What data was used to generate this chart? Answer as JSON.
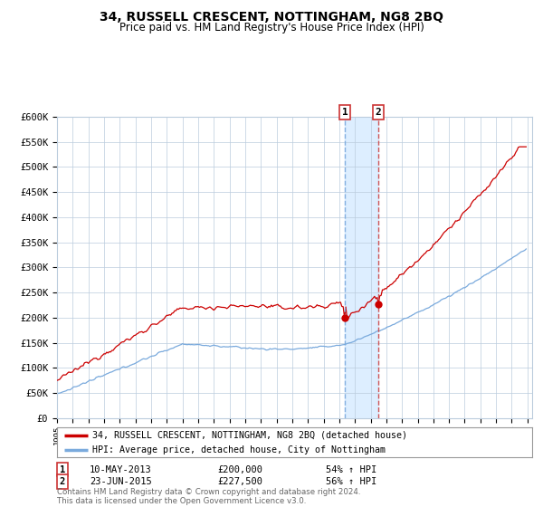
{
  "title": "34, RUSSELL CRESCENT, NOTTINGHAM, NG8 2BQ",
  "subtitle": "Price paid vs. HM Land Registry's House Price Index (HPI)",
  "ylim": [
    0,
    600000
  ],
  "yticks": [
    0,
    50000,
    100000,
    150000,
    200000,
    250000,
    300000,
    350000,
    400000,
    450000,
    500000,
    550000,
    600000
  ],
  "ytick_labels": [
    "£0",
    "£50K",
    "£100K",
    "£150K",
    "£200K",
    "£250K",
    "£300K",
    "£350K",
    "£400K",
    "£450K",
    "£500K",
    "£550K",
    "£600K"
  ],
  "sale1_date_num": 2013.36,
  "sale1_price": 200000,
  "sale2_date_num": 2015.48,
  "sale2_price": 227500,
  "legend_line1": "34, RUSSELL CRESCENT, NOTTINGHAM, NG8 2BQ (detached house)",
  "legend_line2": "HPI: Average price, detached house, City of Nottingham",
  "ann1_label": "1",
  "ann2_label": "2",
  "ann1_text": "10-MAY-2013",
  "ann1_price": "£200,000",
  "ann1_hpi": "54% ↑ HPI",
  "ann2_text": "23-JUN-2015",
  "ann2_price": "£227,500",
  "ann2_hpi": "56% ↑ HPI",
  "footer": "Contains HM Land Registry data © Crown copyright and database right 2024.\nThis data is licensed under the Open Government Licence v3.0.",
  "red_color": "#cc0000",
  "blue_color": "#7aaadd",
  "shade_color": "#ddeeff",
  "background_color": "#ffffff",
  "grid_color": "#bbccdd"
}
